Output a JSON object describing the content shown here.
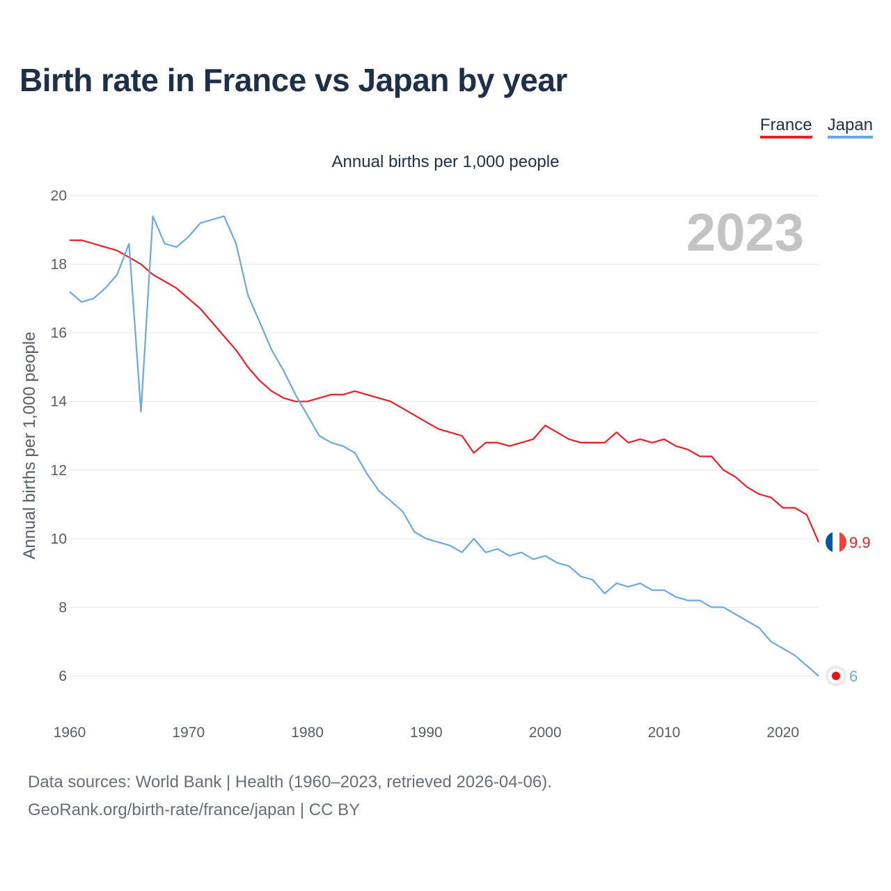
{
  "title": "Birth rate in France vs Japan by year",
  "legend": [
    {
      "name": "France",
      "color": "#ee1c25"
    },
    {
      "name": "Japan",
      "color": "#6aa8e3"
    }
  ],
  "footer": {
    "line1": "Data sources: World Bank | Health (1960–2023, retrieved 2026-04-06).",
    "line2": "GeoRank.org/birth-rate/france/japan | CC BY"
  },
  "chart_data": {
    "type": "line",
    "title": "Annual births per 1,000 people",
    "ylabel": "Annual births per 1,000 people",
    "xlabel": "",
    "year_label": "2023",
    "xlim": [
      1960,
      2023
    ],
    "ylim": [
      5,
      20
    ],
    "x_ticks": [
      1960,
      1970,
      1980,
      1990,
      2000,
      2010,
      2020
    ],
    "y_ticks": [
      6,
      8,
      10,
      12,
      14,
      16,
      18,
      20
    ],
    "x": [
      1960,
      1961,
      1962,
      1963,
      1964,
      1965,
      1966,
      1967,
      1968,
      1969,
      1970,
      1971,
      1972,
      1973,
      1974,
      1975,
      1976,
      1977,
      1978,
      1979,
      1980,
      1981,
      1982,
      1983,
      1984,
      1985,
      1986,
      1987,
      1988,
      1989,
      1990,
      1991,
      1992,
      1993,
      1994,
      1995,
      1996,
      1997,
      1998,
      1999,
      2000,
      2001,
      2002,
      2003,
      2004,
      2005,
      2006,
      2007,
      2008,
      2009,
      2010,
      2011,
      2012,
      2013,
      2014,
      2015,
      2016,
      2017,
      2018,
      2019,
      2020,
      2021,
      2022,
      2023
    ],
    "series": [
      {
        "name": "France",
        "color": "#ee1c25",
        "end_label": "9.9",
        "flag_icon": "france-flag-icon",
        "values": [
          18.7,
          18.7,
          18.6,
          18.5,
          18.4,
          18.2,
          18.0,
          17.7,
          17.5,
          17.3,
          17.0,
          16.7,
          16.3,
          15.9,
          15.5,
          15.0,
          14.6,
          14.3,
          14.1,
          14.0,
          14.0,
          14.1,
          14.2,
          14.2,
          14.3,
          14.2,
          14.1,
          14.0,
          13.8,
          13.6,
          13.4,
          13.2,
          13.1,
          13.0,
          12.5,
          12.8,
          12.8,
          12.7,
          12.8,
          12.9,
          13.3,
          13.1,
          12.9,
          12.8,
          12.8,
          12.8,
          13.1,
          12.8,
          12.9,
          12.8,
          12.9,
          12.7,
          12.6,
          12.4,
          12.4,
          12.0,
          11.8,
          11.5,
          11.3,
          11.2,
          10.9,
          10.9,
          10.7,
          9.9
        ]
      },
      {
        "name": "Japan",
        "color": "#6aa8e3",
        "end_label": "6",
        "flag_icon": "japan-flag-icon",
        "values": [
          17.2,
          16.9,
          17.0,
          17.3,
          17.7,
          18.6,
          13.7,
          19.4,
          18.6,
          18.5,
          18.8,
          19.2,
          19.3,
          19.4,
          18.6,
          17.1,
          16.3,
          15.5,
          14.9,
          14.2,
          13.6,
          13.0,
          12.8,
          12.7,
          12.5,
          11.9,
          11.4,
          11.1,
          10.8,
          10.2,
          10.0,
          9.9,
          9.8,
          9.6,
          10.0,
          9.6,
          9.7,
          9.5,
          9.6,
          9.4,
          9.5,
          9.3,
          9.2,
          8.9,
          8.8,
          8.4,
          8.7,
          8.6,
          8.7,
          8.5,
          8.5,
          8.3,
          8.2,
          8.2,
          8.0,
          8.0,
          7.8,
          7.6,
          7.4,
          7.0,
          6.8,
          6.6,
          6.3,
          6.0
        ]
      }
    ]
  }
}
